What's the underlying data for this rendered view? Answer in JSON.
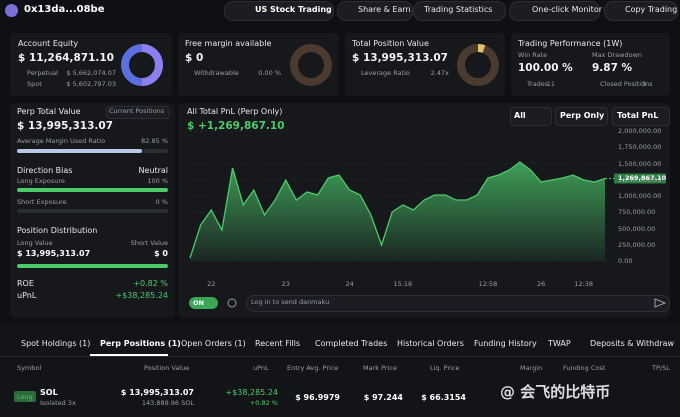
{
  "header": {
    "address": "0x13da...08be",
    "us_stock": "US Stock Trading",
    "nav": [
      "Share & Earn",
      "Trading Statistics",
      "One-click Monitor",
      "Copy Trading"
    ]
  },
  "cards": [
    {
      "title": "Account Equity",
      "value": "$ 11,264,871.10",
      "rows": [
        [
          "Perpetual",
          "$ 5,662,074.07"
        ],
        [
          "Spot",
          "$ 5,602,797.03"
        ]
      ]
    },
    {
      "title": "Free margin available",
      "value": "$ 0",
      "rows": [
        [
          "Withdrawable",
          "0.00 %"
        ]
      ]
    },
    {
      "title": "Total Position Value",
      "value": "$ 13,995,313.07",
      "rows": [
        [
          "Leverage Ratio",
          "2.47x"
        ]
      ]
    }
  ],
  "performance": {
    "title": "Trading Performance (1W)",
    "win_rate_label": "Win Rate",
    "win_rate": "100.00 %",
    "drawdown_label": "Max Drawdown",
    "drawdown": "9.87 %",
    "trades_label": "Trades",
    "trades": "11",
    "closed_label": "Closed Positions",
    "closed": "3"
  },
  "perp": {
    "title": "Perp Total Value",
    "button": "Current Positions",
    "value": "$ 13,995,313.07",
    "margin_label": "Average Margin Used Ratio",
    "margin": "82.85 %",
    "bias_label": "Direction Bias",
    "bias": "Neutral",
    "long_label": "Long Exposure",
    "long": "100 %",
    "short_label": "Short Exposure",
    "short": "0 %",
    "dist_label": "Position Distribution",
    "long_value_label": "Long Value",
    "short_value_label": "Short Value",
    "long_value": "$ 13,995,313.07",
    "short_value": "$ 0",
    "roe_label": "ROE",
    "roe": "+0.82 %",
    "upnl_label": "uPnL",
    "upnl": "+$38,285.24"
  },
  "chart_data": {
    "type": "area",
    "title": "All Total PnL (Perp Only)",
    "total": "$ +1,269,867.10",
    "current_label": "1,269,867.10",
    "filters": [
      "All",
      "Perp Only",
      "Total PnL"
    ],
    "color": "#4ccb6b",
    "categories": [
      null,
      null,
      "22",
      null,
      null,
      null,
      null,
      null,
      null,
      "23",
      null,
      null,
      null,
      null,
      null,
      "24",
      null,
      null,
      null,
      null,
      "15:18",
      null,
      null,
      null,
      null,
      null,
      null,
      null,
      "12:58",
      null,
      null,
      null,
      null,
      "26",
      null,
      null,
      null,
      "12:38",
      null,
      null
    ],
    "values": [
      46000,
      554000,
      785000,
      477000,
      1431000,
      862000,
      1092000,
      708000,
      938000,
      1246000,
      938000,
      1062000,
      1015000,
      1277000,
      1323000,
      1092000,
      1015000,
      708000,
      246000,
      754000,
      862000,
      785000,
      938000,
      1015000,
      1015000,
      938000,
      938000,
      1015000,
      1277000,
      1323000,
      1400000,
      1523000,
      1400000,
      1215000,
      1246000,
      1277000,
      1323000,
      1246000,
      1215000,
      1269867.1
    ],
    "ylim": [
      0,
      2000000
    ],
    "yticks": [
      {
        "value": 0,
        "label": "0.00"
      },
      {
        "value": 250000,
        "label": "250,000.00"
      },
      {
        "value": 500000,
        "label": "500,000.00"
      },
      {
        "value": 750000,
        "label": "750,000.00"
      },
      {
        "value": 1000000,
        "label": "1,000,000.00"
      },
      {
        "value": 1250000,
        "label": "1,250,000.00"
      },
      {
        "value": 1500000,
        "label": "1,500,000.00"
      },
      {
        "value": 1750000,
        "label": "1,750,000.00"
      },
      {
        "value": 2000000,
        "label": "2,000,000.00"
      }
    ]
  },
  "danmaku": {
    "toggle": "ON",
    "placeholder": "Log in to send danmaku"
  },
  "tabs": [
    "Spot Holdings (1)",
    "Perp Positions (1)",
    "Open Orders (1)",
    "Recent Fills",
    "Completed Trades",
    "Historical Orders",
    "Funding History",
    "TWAP",
    "Deposits & Withdraw"
  ],
  "table": {
    "columns": [
      "Symbol",
      "Position Value",
      "uPnL",
      "Entry Avg. Price",
      "Mark Price",
      "Liq. Price",
      "Margin",
      "Funding Cost",
      "TP/SL"
    ],
    "rows": [
      {
        "side": "Long",
        "symbol": "SOL",
        "margin_mode": "Isolated 3x",
        "position_value": "$ 13,995,313.07",
        "size": "143,889.96 SOL",
        "upnl": "+$38,285.24",
        "upnl_pct": "+0.82 %",
        "entry": "$ 96.9979",
        "mark": "$ 97.244",
        "liq": "$ 66.3154"
      }
    ]
  },
  "watermark": "@ 会飞的比特币"
}
